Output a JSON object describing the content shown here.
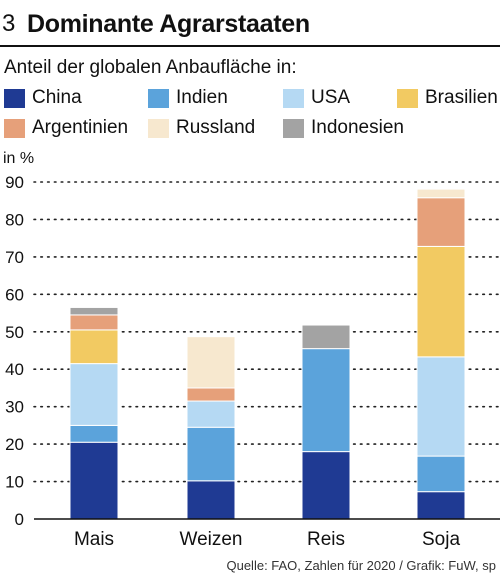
{
  "header": {
    "figure_number": "3",
    "title": "Dominante Agrarstaaten"
  },
  "legend": {
    "items": [
      {
        "label": "China",
        "color": "#1f3a93"
      },
      {
        "label": "Indien",
        "color": "#5ba3db"
      },
      {
        "label": "USA",
        "color": "#b5d9f3"
      },
      {
        "label": "Brasilien",
        "color": "#f2ca62"
      },
      {
        "label": "Argentinien",
        "color": "#e6a07a"
      },
      {
        "label": "Russland",
        "color": "#f7e8cf"
      },
      {
        "label": "Indonesien",
        "color": "#a3a3a3"
      }
    ]
  },
  "chart_data": {
    "type": "bar",
    "stacked": true,
    "title": "Dominante Agrarstaaten",
    "subtitle": "Anteil der globalen Anbaufläche in:",
    "ylabel": "in %",
    "xlabel": "",
    "ylim": [
      0,
      90
    ],
    "yticks": [
      0,
      10,
      20,
      30,
      40,
      50,
      60,
      70,
      80,
      90
    ],
    "grid": true,
    "legend_position": "top",
    "categories": [
      "Mais",
      "Weizen",
      "Reis",
      "Soja"
    ],
    "series": [
      {
        "name": "China",
        "color": "#1f3a93",
        "values": [
          20.5,
          10.2,
          18.0,
          7.3
        ]
      },
      {
        "name": "Indien",
        "color": "#5ba3db",
        "values": [
          4.5,
          14.3,
          27.5,
          9.5
        ]
      },
      {
        "name": "USA",
        "color": "#b5d9f3",
        "values": [
          16.5,
          7.0,
          0.0,
          26.5
        ]
      },
      {
        "name": "Brasilien",
        "color": "#f2ca62",
        "values": [
          9.0,
          0.0,
          0.0,
          29.5
        ]
      },
      {
        "name": "Argentinien",
        "color": "#e6a07a",
        "values": [
          4.0,
          3.5,
          0.0,
          13.0
        ]
      },
      {
        "name": "Russland",
        "color": "#f7e8cf",
        "values": [
          0.0,
          13.7,
          0.0,
          2.3
        ]
      },
      {
        "name": "Indonesien",
        "color": "#a3a3a3",
        "values": [
          2.0,
          0.0,
          6.3,
          0.0
        ]
      }
    ],
    "separator_color": "#ffffff"
  },
  "footer": {
    "source": "Quelle: FAO, Zahlen für 2020 / Grafik: FuW, sp"
  }
}
